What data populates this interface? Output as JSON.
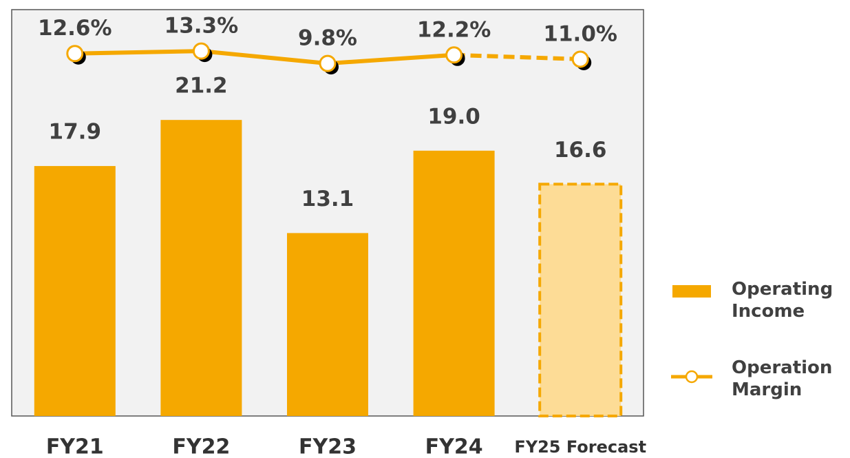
{
  "chart_data": {
    "type": "bar_line",
    "categories": [
      "FY21",
      "FY22",
      "FY23",
      "FY24",
      "FY25 Forecast"
    ],
    "series": [
      {
        "name": "Operating Income",
        "type": "bar",
        "color": "#f5a800",
        "values": [
          17.9,
          21.2,
          13.1,
          19.0,
          16.6
        ],
        "value_labels": [
          "17.9",
          "21.2",
          "13.1",
          "19.0",
          "16.6"
        ]
      },
      {
        "name": "Operation Margin",
        "type": "line",
        "axis": "y2",
        "color": "#f5a800",
        "values": [
          12.6,
          13.3,
          9.8,
          12.2,
          11.0
        ],
        "value_labels": [
          "12.6%",
          "13.3%",
          "9.8%",
          "12.2%",
          "11.0%"
        ]
      }
    ],
    "ylim": [
      0,
      29.1
    ],
    "y2lim": [
      -89.8,
      25
    ],
    "legend": "right"
  }
}
